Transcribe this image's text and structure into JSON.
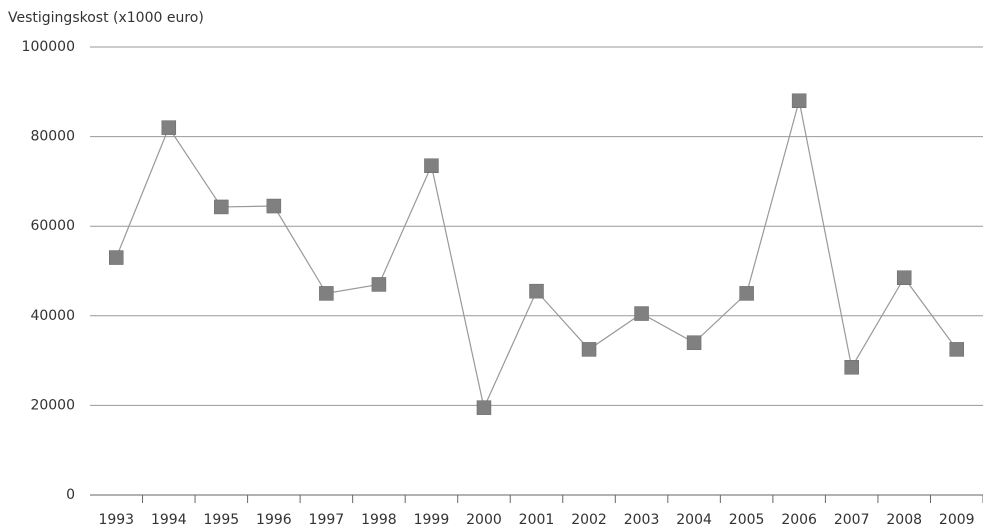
{
  "chart_data": {
    "type": "line",
    "y_label": "Vestigingskost (x1000 euro)",
    "categories": [
      "1993",
      "1994",
      "1995",
      "1996",
      "1997",
      "1998",
      "1999",
      "2000",
      "2001",
      "2002",
      "2003",
      "2004",
      "2005",
      "2006",
      "2007",
      "2008",
      "2009"
    ],
    "series": [
      {
        "name": "Vestigingskost",
        "color": "#808080",
        "values": [
          53000,
          82000,
          64300,
          64500,
          45000,
          47000,
          73500,
          19500,
          45500,
          32500,
          40500,
          34000,
          45000,
          88000,
          28500,
          48500,
          32500
        ]
      }
    ],
    "ylim": [
      0,
      100000
    ],
    "yticks": [
      0,
      20000,
      40000,
      60000,
      80000,
      100000
    ],
    "grid": true,
    "legend": false
  }
}
